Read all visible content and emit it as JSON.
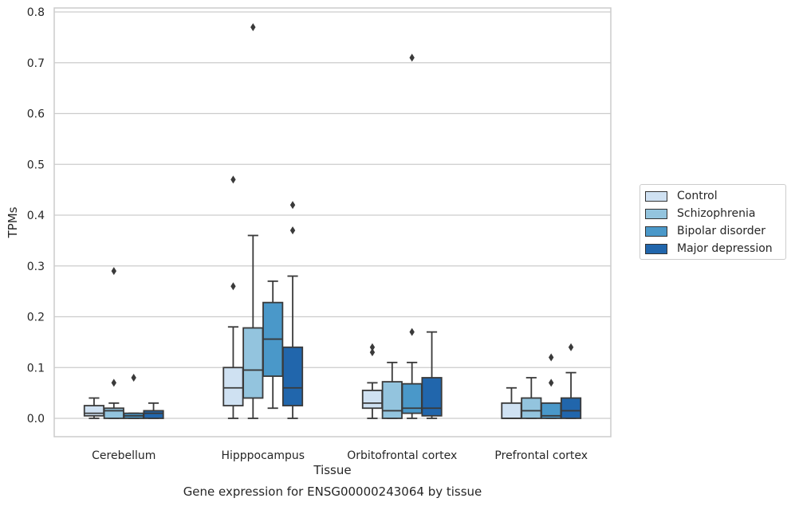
{
  "chart_data": {
    "type": "box",
    "title": "Gene expression for ENSG00000243064 by tissue",
    "xlabel": "Tissue",
    "ylabel": "TPMs",
    "ylim": [
      -0.037,
      0.812
    ],
    "yticks": [
      "0.0",
      "0.1",
      "0.2",
      "0.3",
      "0.4",
      "0.5",
      "0.6",
      "0.7",
      "0.8"
    ],
    "grid": "horizontal",
    "legend_position": "right",
    "categories": [
      "Cerebellum",
      "Hipppocampus",
      "Orbitofrontal cortex",
      "Prefrontal cortex"
    ],
    "series": [
      {
        "name": "Control",
        "color": "#cfe1f2",
        "boxes": [
          {
            "whislo": 0.0,
            "q1": 0.005,
            "med": 0.01,
            "q3": 0.025,
            "whishi": 0.04,
            "fliers": []
          },
          {
            "whislo": 0.0,
            "q1": 0.025,
            "med": 0.06,
            "q3": 0.1,
            "whishi": 0.18,
            "fliers": [
              0.26,
              0.47
            ]
          },
          {
            "whislo": 0.0,
            "q1": 0.02,
            "med": 0.03,
            "q3": 0.055,
            "whishi": 0.07,
            "fliers": [
              0.13,
              0.14
            ]
          },
          {
            "whislo": 0.0,
            "q1": 0.0,
            "med": 0.0,
            "q3": 0.03,
            "whishi": 0.06,
            "fliers": []
          }
        ]
      },
      {
        "name": "Schizophrenia",
        "color": "#93c4de",
        "boxes": [
          {
            "whislo": 0.0,
            "q1": 0.0,
            "med": 0.015,
            "q3": 0.02,
            "whishi": 0.03,
            "fliers": [
              0.07,
              0.29
            ]
          },
          {
            "whislo": 0.0,
            "q1": 0.04,
            "med": 0.095,
            "q3": 0.178,
            "whishi": 0.36,
            "fliers": [
              0.77
            ]
          },
          {
            "whislo": 0.0,
            "q1": 0.0,
            "med": 0.015,
            "q3": 0.072,
            "whishi": 0.11,
            "fliers": []
          },
          {
            "whislo": 0.0,
            "q1": 0.0,
            "med": 0.015,
            "q3": 0.04,
            "whishi": 0.08,
            "fliers": []
          }
        ]
      },
      {
        "name": "Bipolar disorder",
        "color": "#4a98c9",
        "boxes": [
          {
            "whislo": 0.0,
            "q1": 0.0,
            "med": 0.005,
            "q3": 0.01,
            "whishi": 0.01,
            "fliers": [
              0.08
            ]
          },
          {
            "whislo": 0.02,
            "q1": 0.083,
            "med": 0.156,
            "q3": 0.228,
            "whishi": 0.27,
            "fliers": []
          },
          {
            "whislo": 0.0,
            "q1": 0.01,
            "med": 0.02,
            "q3": 0.068,
            "whishi": 0.11,
            "fliers": [
              0.17,
              0.71
            ]
          },
          {
            "whislo": 0.0,
            "q1": 0.0,
            "med": 0.005,
            "q3": 0.03,
            "whishi": 0.03,
            "fliers": [
              0.07,
              0.12
            ]
          }
        ]
      },
      {
        "name": "Major depression",
        "color": "#2166ac",
        "boxes": [
          {
            "whislo": 0.0,
            "q1": 0.0,
            "med": 0.01,
            "q3": 0.015,
            "whishi": 0.03,
            "fliers": []
          },
          {
            "whislo": 0.0,
            "q1": 0.025,
            "med": 0.06,
            "q3": 0.14,
            "whishi": 0.28,
            "fliers": [
              0.37,
              0.42
            ]
          },
          {
            "whislo": 0.0,
            "q1": 0.005,
            "med": 0.02,
            "q3": 0.08,
            "whishi": 0.17,
            "fliers": []
          },
          {
            "whislo": 0.0,
            "q1": 0.0,
            "med": 0.015,
            "q3": 0.04,
            "whishi": 0.09,
            "fliers": [
              0.14
            ]
          }
        ]
      }
    ]
  }
}
